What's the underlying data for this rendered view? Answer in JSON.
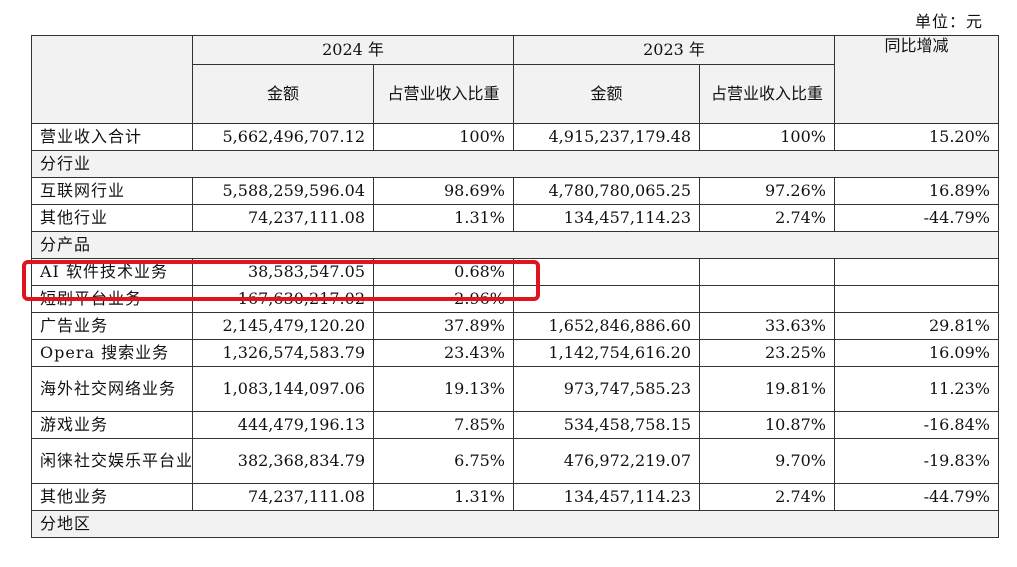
{
  "unit_label": "单位：元",
  "header": {
    "year_2024": "2024 年",
    "year_2023": "2023 年",
    "amount": "金额",
    "ratio": "占营业收入比重",
    "yoy": "同比增减"
  },
  "rows": [
    {
      "type": "data",
      "label": "营业收入合计",
      "a2024": "5,662,496,707.12",
      "r2024": "100%",
      "a2023": "4,915,237,179.48",
      "r2023": "100%",
      "yoy": "15.20%"
    },
    {
      "type": "section",
      "label": "分行业"
    },
    {
      "type": "data",
      "label": "互联网行业",
      "a2024": "5,588,259,596.04",
      "r2024": "98.69%",
      "a2023": "4,780,780,065.25",
      "r2023": "97.26%",
      "yoy": "16.89%"
    },
    {
      "type": "data",
      "label": "其他行业",
      "a2024": "74,237,111.08",
      "r2024": "1.31%",
      "a2023": "134,457,114.23",
      "r2023": "2.74%",
      "yoy": "-44.79%"
    },
    {
      "type": "section",
      "label": "分产品"
    },
    {
      "type": "data",
      "label": "AI 软件技术业务",
      "a2024": "38,583,547.05",
      "r2024": "0.68%",
      "a2023": "",
      "r2023": "",
      "yoy": ""
    },
    {
      "type": "data",
      "label": "短剧平台业务",
      "a2024": "167,630,217.02",
      "r2024": "2.96%",
      "a2023": "",
      "r2023": "",
      "yoy": ""
    },
    {
      "type": "data",
      "label": "广告业务",
      "a2024": "2,145,479,120.20",
      "r2024": "37.89%",
      "a2023": "1,652,846,886.60",
      "r2023": "33.63%",
      "yoy": "29.81%"
    },
    {
      "type": "data",
      "label": "Opera 搜索业务",
      "a2024": "1,326,574,583.79",
      "r2024": "23.43%",
      "a2023": "1,142,754,616.20",
      "r2023": "23.25%",
      "yoy": "16.09%"
    },
    {
      "type": "data",
      "label": "海外社交网络业务",
      "a2024": "1,083,144,097.06",
      "r2024": "19.13%",
      "a2023": "973,747,585.23",
      "r2023": "19.81%",
      "yoy": "11.23%"
    },
    {
      "type": "data",
      "label": "游戏业务",
      "a2024": "444,479,196.13",
      "r2024": "7.85%",
      "a2023": "534,458,758.15",
      "r2023": "10.87%",
      "yoy": "-16.84%"
    },
    {
      "type": "data",
      "label": "闲徕社交娱乐平台业务",
      "a2024": "382,368,834.79",
      "r2024": "6.75%",
      "a2023": "476,972,219.07",
      "r2023": "9.70%",
      "yoy": "-19.83%"
    },
    {
      "type": "data",
      "label": "其他业务",
      "a2024": "74,237,111.08",
      "r2024": "1.31%",
      "a2023": "134,457,114.23",
      "r2023": "2.74%",
      "yoy": "-44.79%"
    },
    {
      "type": "section",
      "label": "分地区"
    }
  ],
  "highlight_color": "#e0141e"
}
